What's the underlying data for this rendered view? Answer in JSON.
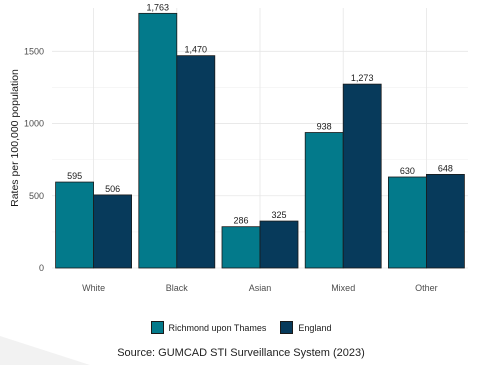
{
  "chart_data": {
    "type": "bar",
    "title": "",
    "xlabel": "",
    "ylabel": "Rates per 100,000 population",
    "ylim": [
      0,
      1800
    ],
    "yticks": [
      0,
      500,
      1000,
      1500
    ],
    "grid": true,
    "legend_position": "bottom",
    "categories": [
      "White",
      "Black",
      "Asian",
      "Mixed",
      "Other"
    ],
    "series": [
      {
        "name": "Richmond upon Thames",
        "color": "#037a8b",
        "values": [
          595,
          1763,
          286,
          938,
          630
        ],
        "labels": [
          "595",
          "1,763",
          "286",
          "938",
          "630"
        ]
      },
      {
        "name": "England",
        "color": "#073a5b",
        "values": [
          506,
          1470,
          325,
          1273,
          648
        ],
        "labels": [
          "506",
          "1,470",
          "325",
          "1,273",
          "648"
        ]
      }
    ]
  },
  "source": "Source: GUMCAD STI Surveillance System (2023)"
}
